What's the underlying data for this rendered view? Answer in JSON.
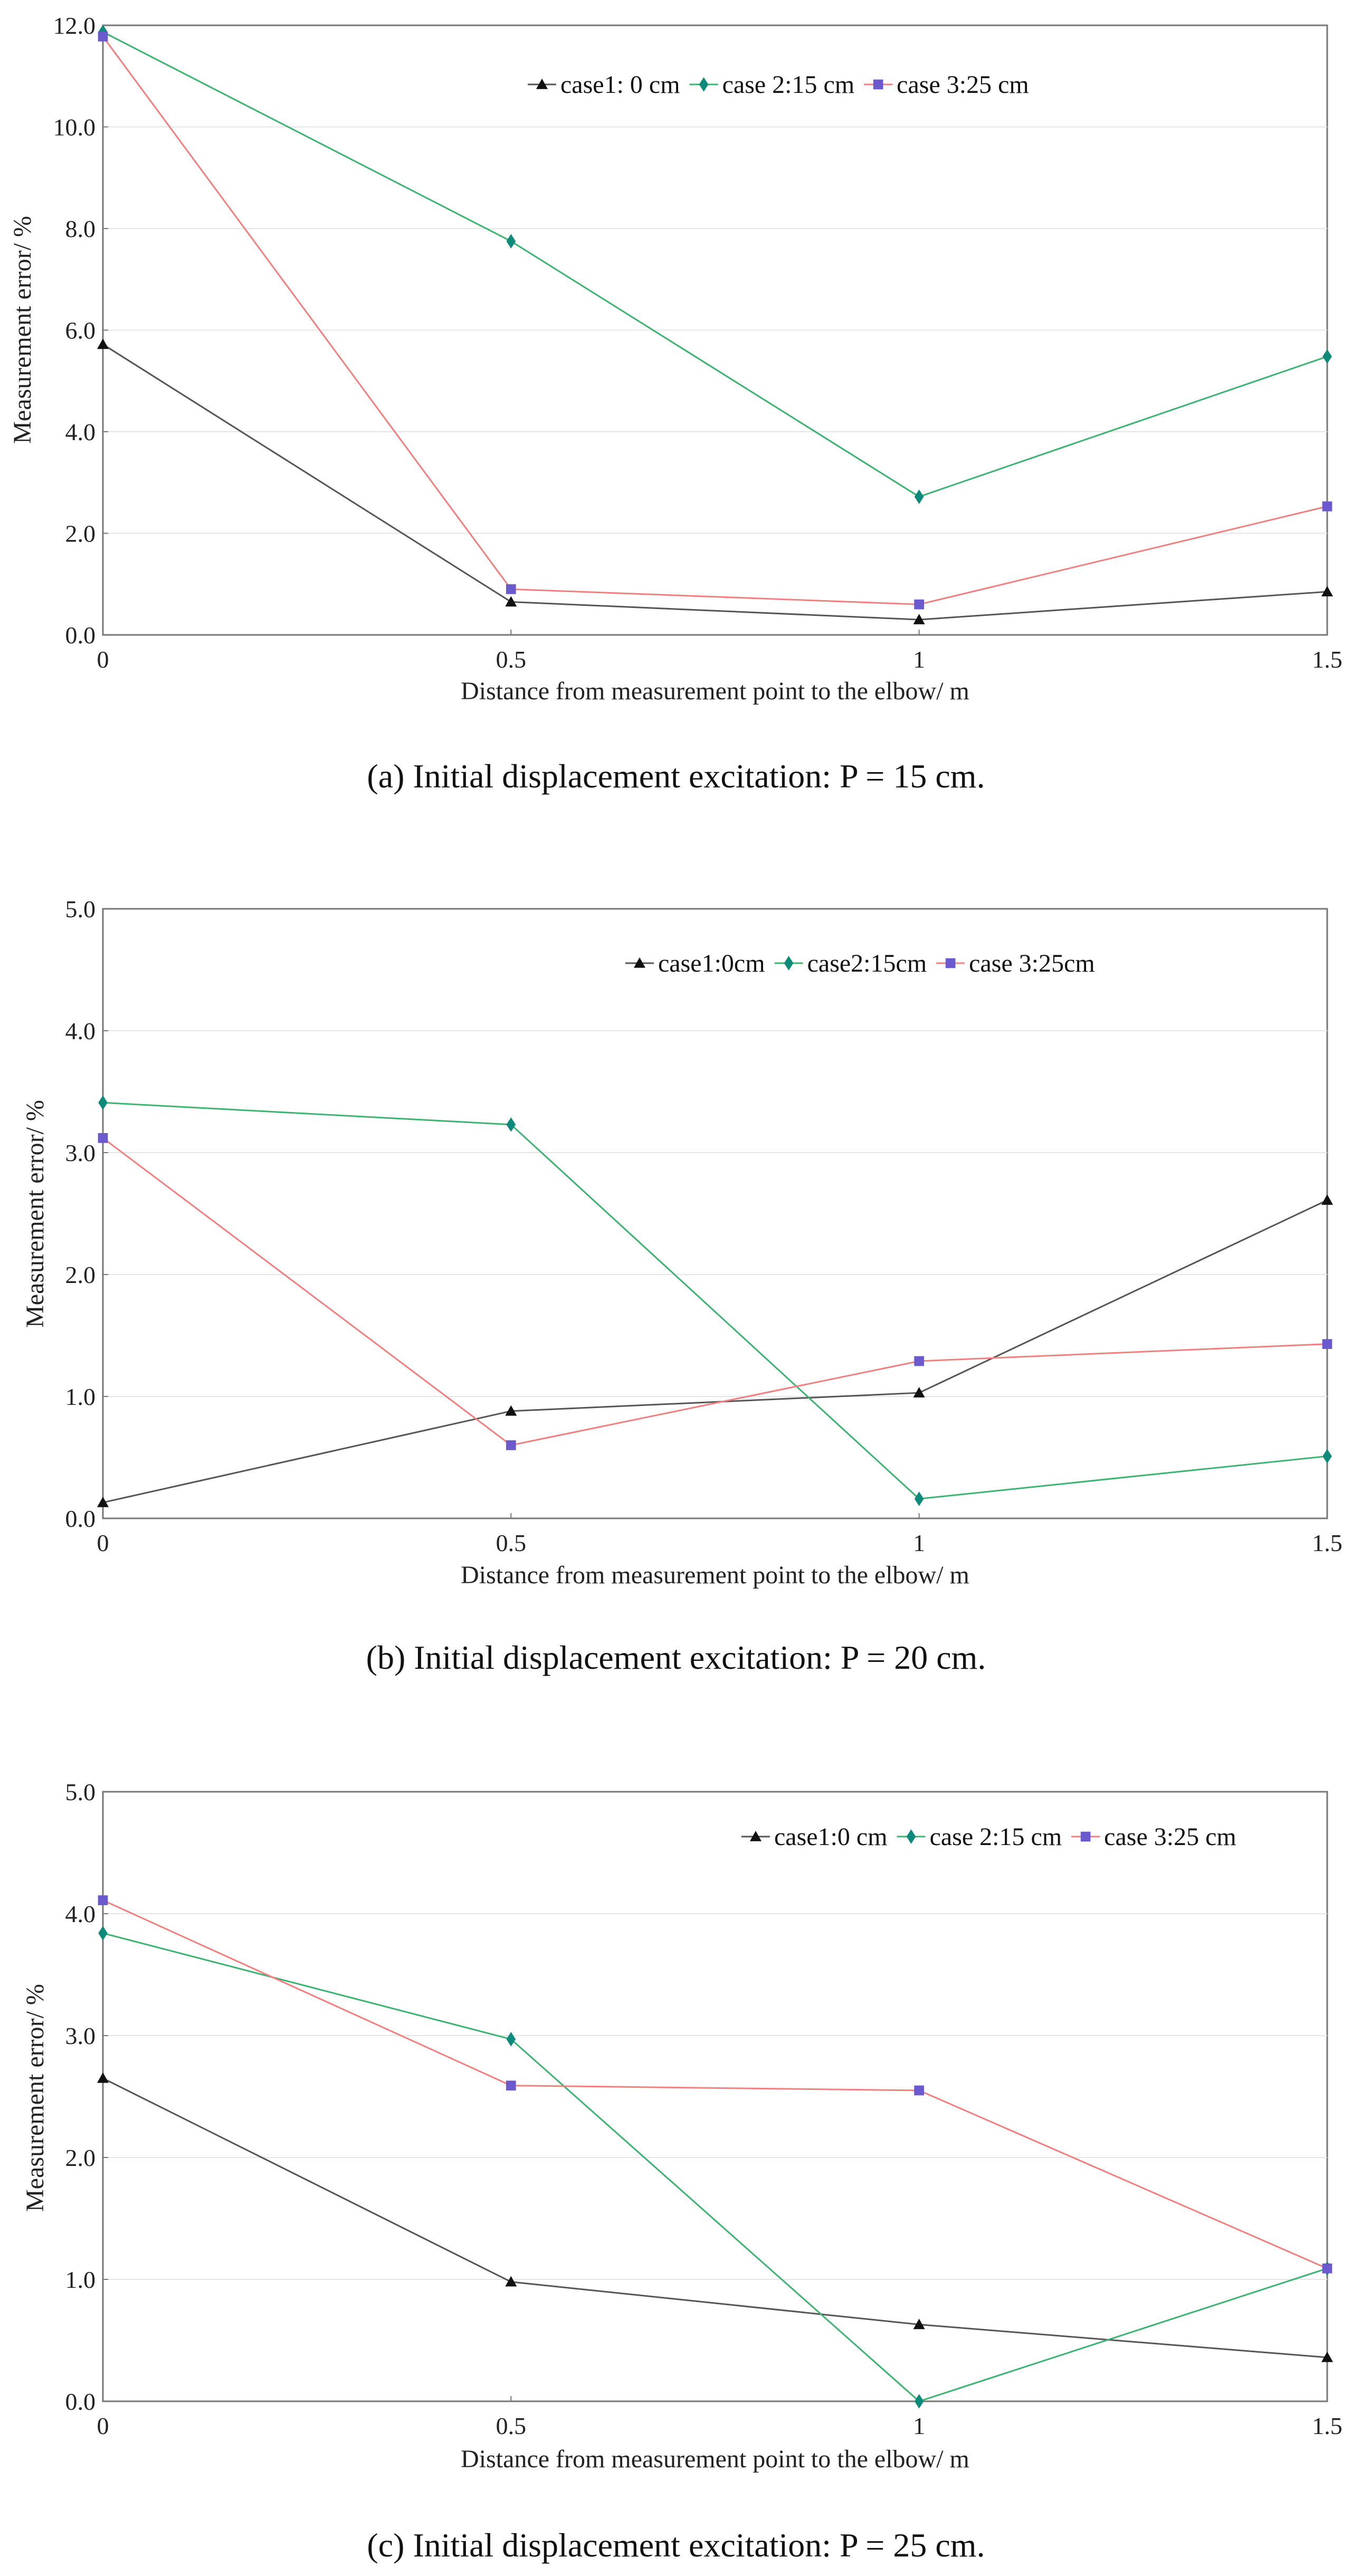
{
  "colors": {
    "case1": "#555555",
    "case2": "#3cb371",
    "case3": "#f08080",
    "marker1": "#111111",
    "marker2": "#0e8a7a",
    "marker3": "#6a5acd",
    "grid": "#e6e6e6",
    "axis": "#777777"
  },
  "chart_data": [
    {
      "type": "line",
      "panel": "a",
      "caption": "(a) Initial displacement excitation: P = 15 cm.",
      "xlabel": "Distance from measurement point to the elbow/ m",
      "ylabel": "Measurement error/ %",
      "x": [
        0,
        0.5,
        1,
        1.5
      ],
      "x_tick_labels": [
        "0",
        "0.5",
        "1",
        "1.5"
      ],
      "xlim": [
        0,
        1.5
      ],
      "ylim": [
        0,
        12
      ],
      "y_ticks": [
        0,
        2,
        4,
        6,
        8,
        10,
        12
      ],
      "y_tick_labels": [
        "0.0",
        "2.0",
        "4.0",
        "6.0",
        "8.0",
        "10.0",
        "12.0"
      ],
      "legend_position": "top-right",
      "series": [
        {
          "name": "case1: 0 cm",
          "marker": "triangle",
          "values": [
            5.72,
            0.65,
            0.3,
            0.85
          ]
        },
        {
          "name": "case 2:15 cm",
          "marker": "diamond",
          "values": [
            11.87,
            7.75,
            2.72,
            5.48
          ]
        },
        {
          "name": "case 3:25 cm",
          "marker": "square",
          "values": [
            11.78,
            0.9,
            0.6,
            2.53
          ]
        }
      ]
    },
    {
      "type": "line",
      "panel": "b",
      "caption": "(b) Initial displacement excitation: P = 20 cm.",
      "xlabel": "Distance from measurement point to the elbow/ m",
      "ylabel": "Measurement error/ %",
      "x": [
        0,
        0.5,
        1,
        1.5
      ],
      "x_tick_labels": [
        "0",
        "0.5",
        "1",
        "1.5"
      ],
      "xlim": [
        0,
        1.5
      ],
      "ylim": [
        0,
        5
      ],
      "y_ticks": [
        0,
        1,
        2,
        3,
        4,
        5
      ],
      "y_tick_labels": [
        "0.0",
        "1.0",
        "2.0",
        "3.0",
        "4.0",
        "5.0"
      ],
      "legend_position": "top-right",
      "series": [
        {
          "name": "case1:0cm",
          "marker": "triangle",
          "values": [
            0.13,
            0.88,
            1.03,
            2.61
          ]
        },
        {
          "name": "case2:15cm",
          "marker": "diamond",
          "values": [
            3.41,
            3.23,
            0.16,
            0.51
          ]
        },
        {
          "name": "case 3:25cm",
          "marker": "square",
          "values": [
            3.12,
            0.6,
            1.29,
            1.43
          ]
        }
      ]
    },
    {
      "type": "line",
      "panel": "c",
      "caption": "(c) Initial displacement excitation: P = 25 cm.",
      "xlabel": "Distance from measurement point to the elbow/ m",
      "ylabel": "Measurement error/ %",
      "x": [
        0,
        0.5,
        1,
        1.5
      ],
      "x_tick_labels": [
        "0",
        "0.5",
        "1",
        "1.5"
      ],
      "xlim": [
        0,
        1.5
      ],
      "ylim": [
        0,
        5
      ],
      "y_ticks": [
        0,
        1,
        2,
        3,
        4,
        5
      ],
      "y_tick_labels": [
        "0.0",
        "1.0",
        "2.0",
        "3.0",
        "4.0",
        "5.0"
      ],
      "legend_position": "top-right",
      "series": [
        {
          "name": "case1:0 cm",
          "marker": "triangle",
          "values": [
            2.65,
            0.98,
            0.63,
            0.36
          ]
        },
        {
          "name": "case 2:15 cm",
          "marker": "diamond",
          "values": [
            3.84,
            2.97,
            0.0,
            1.09
          ]
        },
        {
          "name": "case 3:25 cm",
          "marker": "square",
          "values": [
            4.11,
            2.59,
            2.55,
            1.09
          ]
        }
      ]
    }
  ]
}
